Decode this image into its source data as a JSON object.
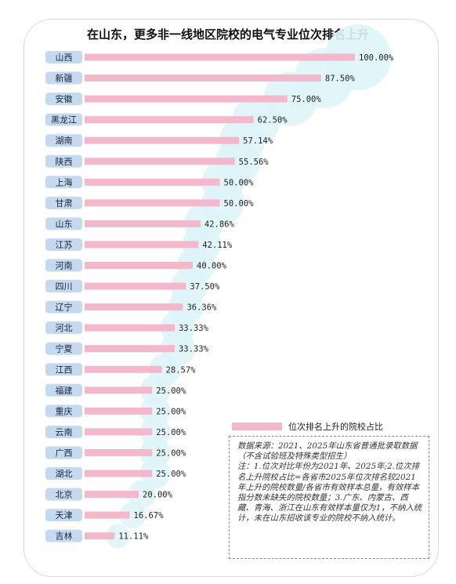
{
  "chart_data": {
    "type": "bar",
    "orientation": "horizontal",
    "title": "在山东，更多非一线地区院校的电气专业位次排名上升",
    "categories": [
      "山西",
      "新疆",
      "安徽",
      "黑龙江",
      "湖南",
      "陕西",
      "上海",
      "甘肃",
      "山东",
      "江苏",
      "河南",
      "四川",
      "辽宁",
      "河北",
      "宁夏",
      "江西",
      "福建",
      "重庆",
      "云南",
      "广西",
      "湖北",
      "北京",
      "天津",
      "吉林"
    ],
    "series": [
      {
        "name": "位次排名上升的院校占比",
        "values": [
          100.0,
          87.5,
          75.0,
          62.5,
          57.14,
          55.56,
          50.0,
          50.0,
          42.86,
          42.11,
          40.0,
          37.5,
          36.36,
          33.33,
          33.33,
          28.57,
          25.0,
          25.0,
          25.0,
          25.0,
          25.0,
          20.0,
          16.67,
          11.11
        ],
        "labels": [
          "100.00%",
          "87.50%",
          "75.00%",
          "62.50%",
          "57.14%",
          "55.56%",
          "50.00%",
          "50.00%",
          "42.86%",
          "42.11%",
          "40.00%",
          "37.50%",
          "36.36%",
          "33.33%",
          "33.33%",
          "28.57%",
          "25.00%",
          "25.00%",
          "25.00%",
          "25.00%",
          "25.00%",
          "20.00%",
          "16.67%",
          "11.11%"
        ]
      }
    ],
    "xlim": [
      0,
      100
    ],
    "grid": false,
    "legend": "bottom-right",
    "colors": {
      "bar": "#f4b8cd",
      "bubble": "#dff4f7",
      "category_box": "#c5daf0"
    }
  },
  "note": {
    "lines": [
      "数据来源：2021、2025年山东省普通批录取数据（不含试验班及特殊类型招生）",
      "注：1.位次对比年份为2021年、2025年;2.位次排名上升院校占比=各省市2025年位次排名较2021年上升的院校数量/各省市有效样本总量，有效样本指分数未缺失的院校数量；3.广东、内蒙古、西藏、青海、浙江在山东有效样本量仅为1，不纳入统计，未在山东招收该专业的院校不纳入统计。"
    ]
  }
}
